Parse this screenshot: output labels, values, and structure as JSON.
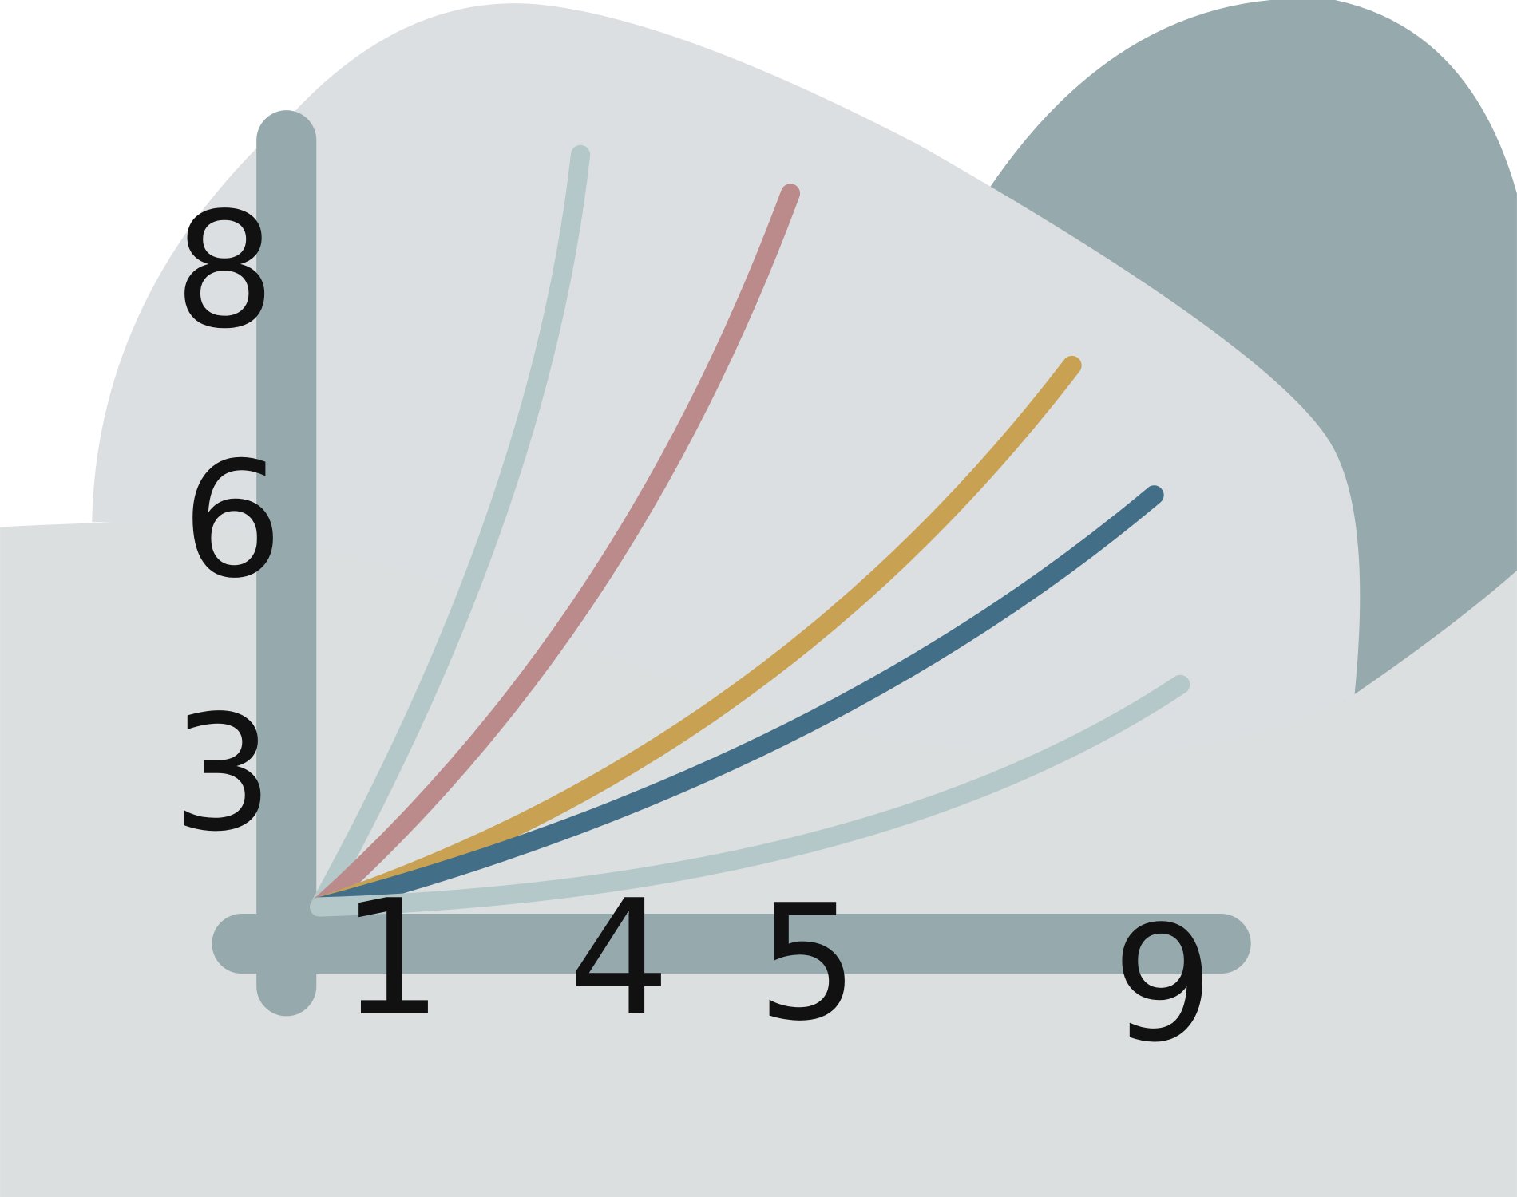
{
  "y_axis_labels": [
    "8",
    "6",
    "3"
  ],
  "x_axis_labels": [
    "1",
    "4",
    "5",
    "9"
  ]
}
